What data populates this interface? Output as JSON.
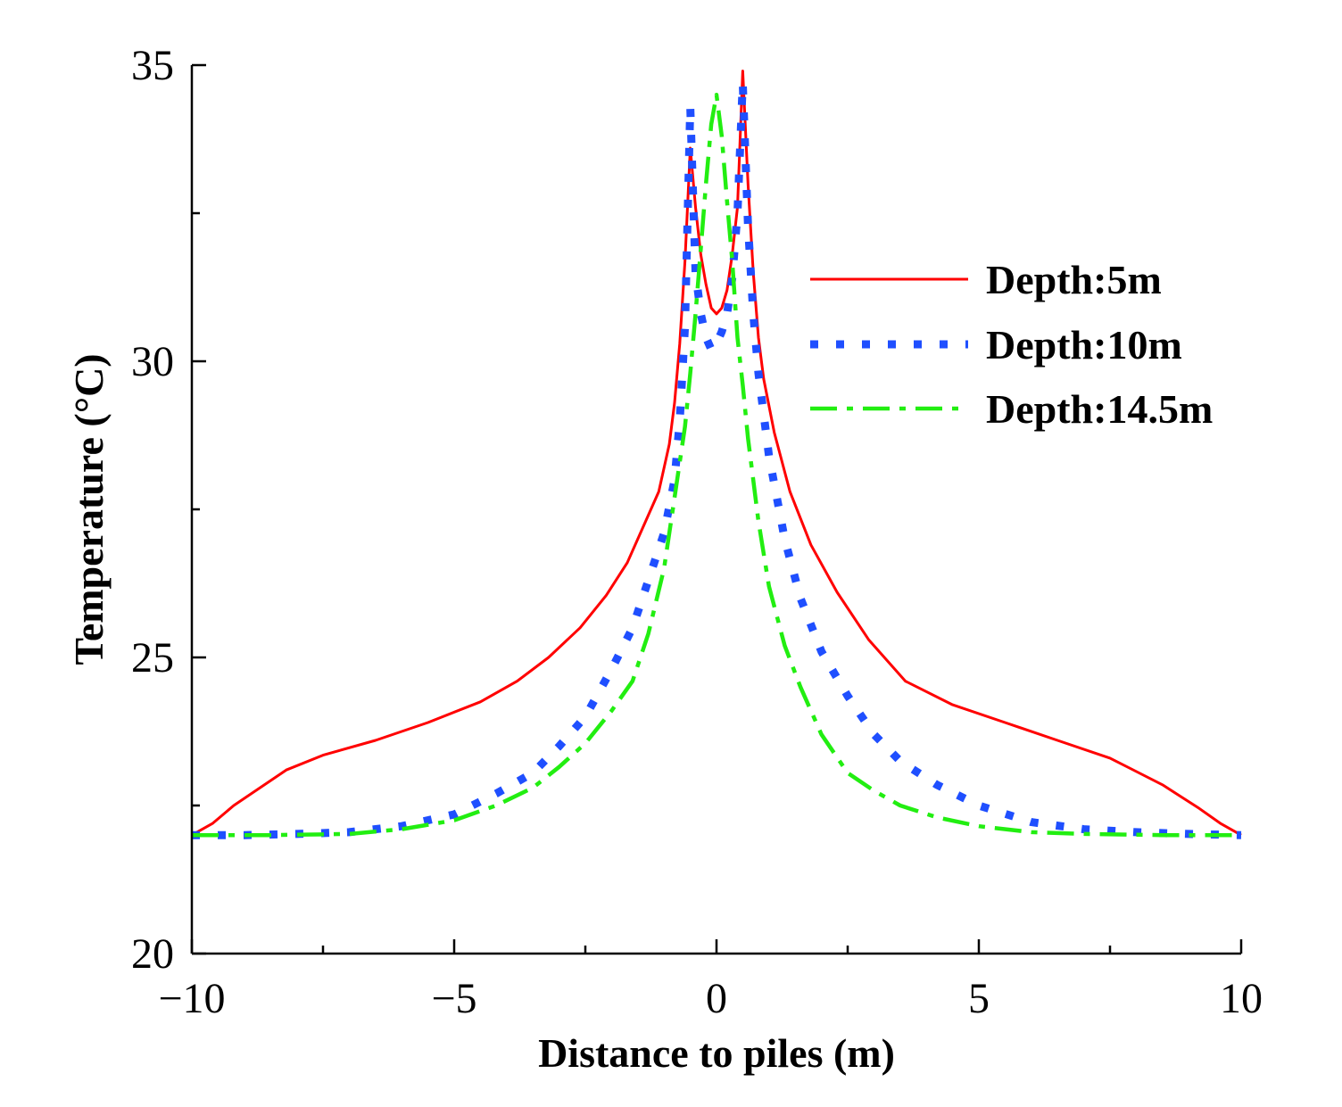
{
  "chart_data": {
    "type": "line",
    "title": "",
    "xlabel": "Distance to piles (m)",
    "ylabel": "Temperature (°C)",
    "xlim": [
      -10,
      10
    ],
    "ylim": [
      20,
      35
    ],
    "xticks": [
      -10,
      -5,
      0,
      5,
      10
    ],
    "xtick_labels": [
      "−10",
      "−5",
      "0",
      "5",
      "10"
    ],
    "yticks": [
      20,
      25,
      30,
      35
    ],
    "ytick_labels": [
      "20",
      "25",
      "30",
      "35"
    ],
    "grid": false,
    "legend_position": "right",
    "series": [
      {
        "name": "Depth:5m",
        "color": "#ff0000",
        "style": "solid",
        "x": [
          -10,
          -9.6,
          -9.2,
          -8.7,
          -8.2,
          -7.5,
          -6.5,
          -5.5,
          -4.5,
          -3.8,
          -3.2,
          -2.6,
          -2.1,
          -1.7,
          -1.4,
          -1.1,
          -0.9,
          -0.8,
          -0.7,
          -0.6,
          -0.5,
          -0.4,
          -0.3,
          -0.2,
          -0.1,
          0,
          0.1,
          0.2,
          0.3,
          0.4,
          0.5,
          0.6,
          0.7,
          0.8,
          0.9,
          1.1,
          1.4,
          1.8,
          2.3,
          2.9,
          3.6,
          4.5,
          5.5,
          6.5,
          7.5,
          8.5,
          9.2,
          9.6,
          10
        ],
        "y": [
          22,
          22.2,
          22.5,
          22.8,
          23.1,
          23.35,
          23.6,
          23.9,
          24.25,
          24.6,
          25,
          25.5,
          26.05,
          26.6,
          27.2,
          27.8,
          28.6,
          29.3,
          30.3,
          31.7,
          33.6,
          32.6,
          31.8,
          31.3,
          30.9,
          30.8,
          30.9,
          31.2,
          31.8,
          32.6,
          34.9,
          33.0,
          31.5,
          30.4,
          29.7,
          28.8,
          27.8,
          26.9,
          26.1,
          25.3,
          24.6,
          24.2,
          23.9,
          23.6,
          23.3,
          22.85,
          22.45,
          22.2,
          22
        ]
      },
      {
        "name": "Depth:10m",
        "color": "#1f4fff",
        "style": "dotted",
        "x": [
          -10,
          -9.0,
          -8.0,
          -7.0,
          -6.0,
          -5.0,
          -4.2,
          -3.5,
          -3.0,
          -2.5,
          -2.0,
          -1.6,
          -1.3,
          -1.0,
          -0.8,
          -0.7,
          -0.6,
          -0.5,
          -0.4,
          -0.3,
          -0.2,
          -0.1,
          0,
          0.1,
          0.2,
          0.3,
          0.4,
          0.5,
          0.6,
          0.7,
          0.8,
          1.0,
          1.3,
          1.6,
          2.0,
          2.5,
          3.0,
          3.5,
          4.2,
          5.0,
          6.0,
          7.0,
          8.0,
          9.0,
          10
        ],
        "y": [
          22,
          22.0,
          22.02,
          22.05,
          22.15,
          22.35,
          22.7,
          23.05,
          23.5,
          24.0,
          24.8,
          25.5,
          26.3,
          27.1,
          28.0,
          29.0,
          30.6,
          34.3,
          31.5,
          30.8,
          30.4,
          30.2,
          30.3,
          30.5,
          30.8,
          31.4,
          32.5,
          34.7,
          32.3,
          30.8,
          29.8,
          28.4,
          27.0,
          26.0,
          25.1,
          24.35,
          23.7,
          23.25,
          22.85,
          22.5,
          22.22,
          22.1,
          22.05,
          22.02,
          22
        ]
      },
      {
        "name": "Depth:14.5m",
        "color": "#22ee11",
        "style": "dashdot",
        "x": [
          -10,
          -8.5,
          -7.0,
          -6.0,
          -5.0,
          -4.2,
          -3.5,
          -3.0,
          -2.5,
          -2.0,
          -1.6,
          -1.3,
          -1.0,
          -0.8,
          -0.6,
          -0.5,
          -0.4,
          -0.3,
          -0.2,
          -0.1,
          0,
          0.1,
          0.2,
          0.3,
          0.4,
          0.5,
          0.6,
          0.8,
          1.0,
          1.3,
          1.6,
          2.0,
          2.5,
          3.0,
          3.5,
          4.2,
          5.0,
          6.0,
          7.0,
          8.5,
          10
        ],
        "y": [
          22,
          22.0,
          22.02,
          22.1,
          22.25,
          22.5,
          22.8,
          23.15,
          23.55,
          24.1,
          24.6,
          25.4,
          26.5,
          27.7,
          28.9,
          29.8,
          30.8,
          31.9,
          33.0,
          34.0,
          34.5,
          33.8,
          32.7,
          31.7,
          30.4,
          29.6,
          28.7,
          27.3,
          26.2,
          25.2,
          24.5,
          23.7,
          23.05,
          22.75,
          22.5,
          22.3,
          22.15,
          22.05,
          22.02,
          22.0,
          22
        ]
      }
    ]
  }
}
